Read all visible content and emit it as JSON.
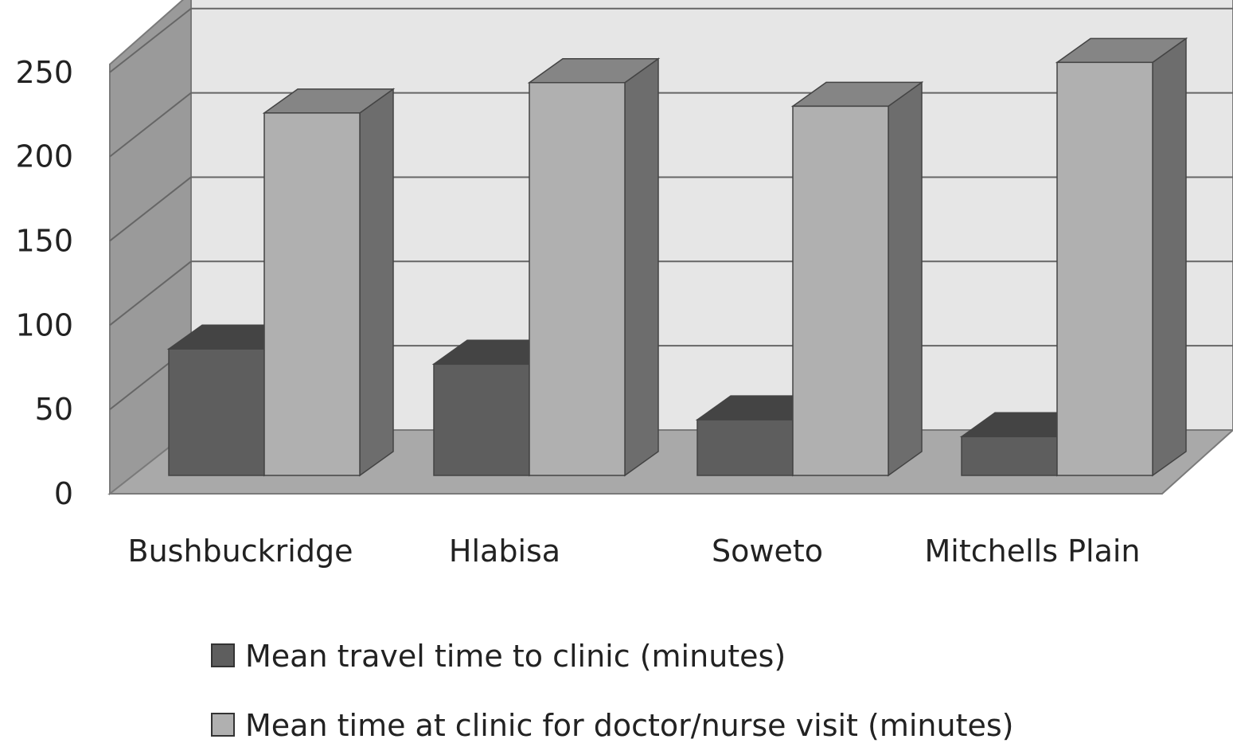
{
  "chart_data": {
    "type": "bar",
    "title": "",
    "xlabel": "",
    "ylabel": "",
    "ylim": [
      0,
      250
    ],
    "yticks": [
      "0",
      "50",
      "100",
      "150",
      "200",
      "250"
    ],
    "categories": [
      "Bushbuckridge",
      "Hlabisa",
      "Soweto",
      "Mitchells Plain"
    ],
    "series": [
      {
        "name": "Mean travel time to clinic (minutes)",
        "values": [
          75,
          66,
          33,
          23
        ],
        "color": "#5e5e5e"
      },
      {
        "name": "Mean time at clinic for doctor/nurse visit (minutes)",
        "values": [
          215,
          233,
          219,
          245
        ],
        "color": "#b0b0b0"
      }
    ],
    "grid": true,
    "legend_position": "bottom",
    "style": "3d-column"
  }
}
